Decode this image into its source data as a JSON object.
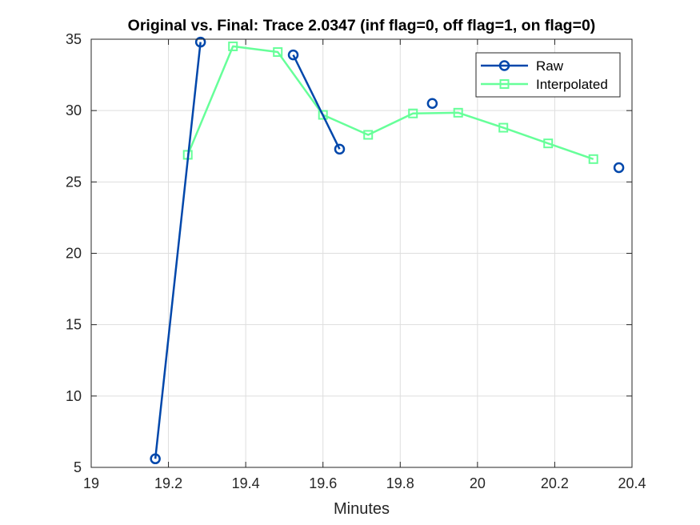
{
  "chart_data": {
    "type": "line",
    "title": "Original vs. Final: Trace 2.0347 (inf flag=0, off flag=1, on flag=0)",
    "xlabel": "Minutes",
    "ylabel": "",
    "xlim": [
      19,
      20.4
    ],
    "ylim": [
      5,
      35
    ],
    "xticks": [
      "19",
      "19.2",
      "19.4",
      "19.6",
      "19.8",
      "20",
      "20.2",
      "20.4"
    ],
    "yticks": [
      "5",
      "10",
      "15",
      "20",
      "25",
      "30",
      "35"
    ],
    "xtick_values": [
      19,
      19.2,
      19.4,
      19.6,
      19.8,
      20,
      20.2,
      20.4
    ],
    "ytick_values": [
      5,
      10,
      15,
      20,
      25,
      30,
      35
    ],
    "grid": true,
    "legend_position": "top-right",
    "series": [
      {
        "name": "Raw",
        "color": "#0047ab",
        "marker": "circle",
        "segments": [
          [
            [
              19.166,
              5.6
            ],
            [
              19.283,
              34.8
            ]
          ],
          [
            [
              19.523,
              33.9
            ],
            [
              19.643,
              27.3
            ]
          ],
          [
            [
              19.883,
              30.5
            ]
          ],
          [
            [
              20.366,
              26.0
            ]
          ]
        ]
      },
      {
        "name": "Interpolated",
        "color": "#66ff99",
        "marker": "square",
        "segments": [
          [
            [
              19.25,
              26.9
            ],
            [
              19.367,
              34.5
            ],
            [
              19.483,
              34.1
            ],
            [
              19.6,
              29.7
            ],
            [
              19.717,
              28.3
            ],
            [
              19.833,
              29.8
            ],
            [
              19.95,
              29.85
            ],
            [
              20.067,
              28.8
            ],
            [
              20.183,
              27.7
            ],
            [
              20.3,
              26.6
            ]
          ]
        ]
      }
    ]
  }
}
